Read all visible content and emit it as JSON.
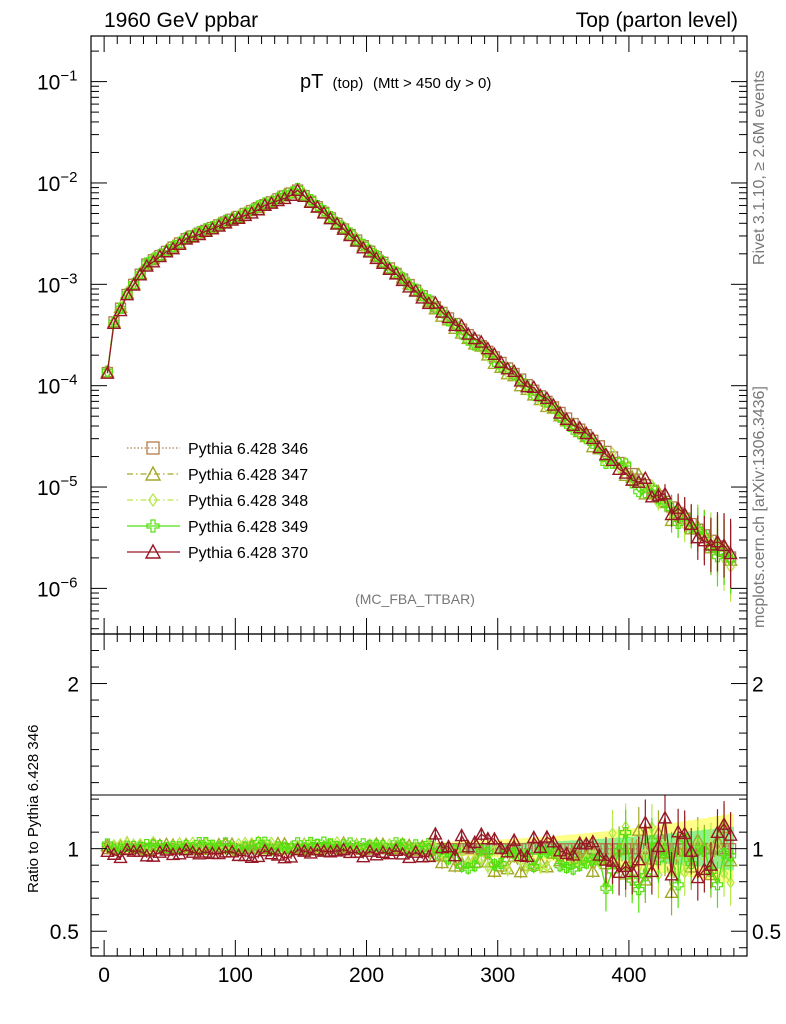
{
  "header": {
    "left": "1960 GeV ppbar",
    "right": "Top (parton level)"
  },
  "title": {
    "main": "pT",
    "sub": "(top)",
    "cut": "(Mtt > 450 dy > 0)"
  },
  "side_labels": {
    "rivet": "Rivet 3.1.10, ≥ 2.6M events",
    "source": "mcplots.cern.ch [arXiv:1306.3436]"
  },
  "analysis_tag": "(MC_FBA_TTBAR)",
  "ratio_ylabel": "Ratio to Pythia 6.428 346",
  "colors": {
    "s346": "#b07c4c",
    "s347": "#a3a828",
    "s348": "#b8e84a",
    "s349": "#54e010",
    "s370": "#961824",
    "band_yellow": "#ffff88",
    "band_green": "#90f090"
  },
  "chart_data": {
    "type": "line",
    "xlim": [
      -10,
      490
    ],
    "x_ticks": [
      0,
      100,
      200,
      300,
      400
    ],
    "main": {
      "ylog": true,
      "ylim_log10": [
        -6.45,
        -0.55
      ],
      "y_tick_labels": [
        {
          "base": "10",
          "exp": "−1",
          "log10": -1
        },
        {
          "base": "10",
          "exp": "−2",
          "log10": -2
        },
        {
          "base": "10",
          "exp": "−3",
          "log10": -3
        },
        {
          "base": "10",
          "exp": "−4",
          "log10": -4
        },
        {
          "base": "10",
          "exp": "−5",
          "log10": -5
        },
        {
          "base": "10",
          "exp": "−6",
          "log10": -6
        }
      ],
      "shape": {
        "x_start": 2.5,
        "x_step": 5,
        "n_points": 96,
        "rise": [
          [
            2.5,
            -3.87
          ],
          [
            7.5,
            -3.37
          ],
          [
            17.5,
            -3.1
          ],
          [
            32.5,
            -2.8
          ],
          [
            62.5,
            -2.55
          ],
          [
            102.5,
            -2.33
          ],
          [
            147.5,
            -2.07
          ]
        ],
        "fall_slope_per_unit": -0.01097
      }
    },
    "ratio": {
      "ylim": [
        0.35,
        2.3
      ],
      "y_ticks": [
        0.5,
        1,
        2
      ],
      "y_tick_labels": [
        "0.5",
        "1",
        "2"
      ]
    },
    "series": [
      {
        "name": "Pythia 6.428 346",
        "key": "s346",
        "marker": "square",
        "dash": "1.5,2",
        "offset": 0.0
      },
      {
        "name": "Pythia 6.428 347",
        "key": "s347",
        "marker": "triangle",
        "dash": "6,3,1.5,3",
        "offset": 0.01
      },
      {
        "name": "Pythia 6.428 348",
        "key": "s348",
        "marker": "diamond",
        "dash": "6,3,1.5,3",
        "offset": 0.02
      },
      {
        "name": "Pythia 6.428 349",
        "key": "s349",
        "marker": "cross",
        "dash": "",
        "offset": 0.015
      },
      {
        "name": "Pythia 6.428 370",
        "key": "s370",
        "marker": "triangle",
        "dash": "",
        "offset": -0.03
      }
    ]
  }
}
